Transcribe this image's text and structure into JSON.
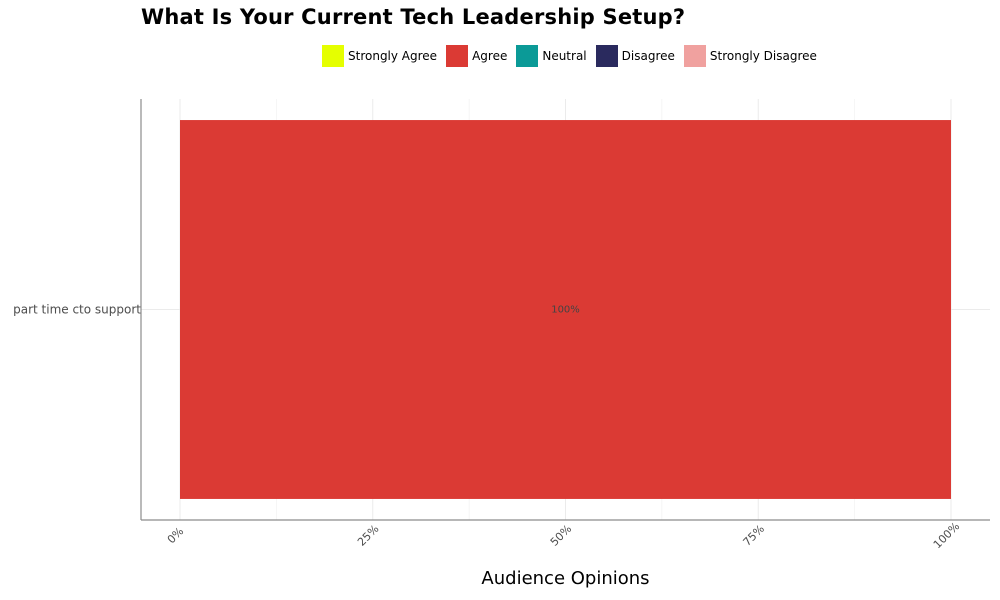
{
  "chart_data": {
    "type": "bar",
    "orientation": "horizontal",
    "stacked": true,
    "title": "What Is Your Current Tech Leadership Setup?",
    "xlabel": "Audience Opinions",
    "ylabel": "",
    "categories": [
      "part time cto support"
    ],
    "series": [
      {
        "name": "Strongly Agree",
        "color": "#e5ff00",
        "values": [
          0
        ]
      },
      {
        "name": "Agree",
        "color": "#db3a34",
        "values": [
          100
        ]
      },
      {
        "name": "Neutral",
        "color": "#0b9a97",
        "values": [
          0
        ]
      },
      {
        "name": "Disagree",
        "color": "#2a2a5e",
        "values": [
          0
        ]
      },
      {
        "name": "Strongly Disagree",
        "color": "#f0a19f",
        "values": [
          0
        ]
      }
    ],
    "data_labels": [
      "100%"
    ],
    "xlim": [
      0,
      100
    ],
    "x_ticks": [
      0,
      25,
      50,
      75,
      100
    ],
    "x_tick_labels": [
      "0%",
      "25%",
      "50%",
      "75%",
      "100%"
    ],
    "grid": true,
    "legend_position": "top"
  }
}
